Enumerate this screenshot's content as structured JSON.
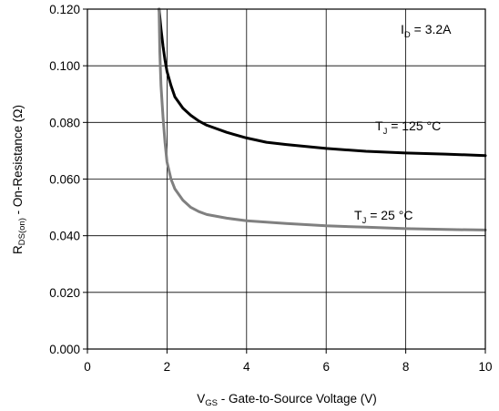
{
  "chart_data": {
    "type": "line",
    "xlim": [
      0,
      10
    ],
    "ylim": [
      0,
      0.12
    ],
    "x_ticks": [
      0,
      2,
      4,
      6,
      8,
      10
    ],
    "x_tick_labels": [
      "0",
      "2",
      "4",
      "6",
      "8",
      "10"
    ],
    "y_ticks": [
      0,
      0.02,
      0.04,
      0.06,
      0.08,
      0.1,
      0.12
    ],
    "y_tick_labels": [
      "0.000",
      "0.020",
      "0.040",
      "0.060",
      "0.080",
      "0.100",
      "0.120"
    ],
    "grid": true,
    "xlabel": {
      "main": "V",
      "sub": "GS",
      "rest": " - Gate-to-Source Voltage (V)"
    },
    "ylabel": {
      "main": "R",
      "sub": "DS(on)",
      "rest": " - On-Resistance (Ω)"
    },
    "annotation_id": {
      "main": "I",
      "sub": "D",
      "rest": " = 3.2A"
    },
    "series": [
      {
        "label": {
          "main": "T",
          "sub": "J",
          "rest": " = 125 °C"
        },
        "color": "#000000",
        "x": [
          1.8,
          1.85,
          1.9,
          1.95,
          2.0,
          2.1,
          2.2,
          2.4,
          2.6,
          2.8,
          3.0,
          3.5,
          4.0,
          4.5,
          5.0,
          6.0,
          7.0,
          8.0,
          9.0,
          10.0
        ],
        "y": [
          0.12,
          0.113,
          0.107,
          0.102,
          0.098,
          0.093,
          0.089,
          0.085,
          0.0825,
          0.0805,
          0.079,
          0.0765,
          0.0745,
          0.073,
          0.0722,
          0.0708,
          0.0698,
          0.0692,
          0.0688,
          0.0683
        ]
      },
      {
        "label": {
          "main": "T",
          "sub": "J",
          "rest": " = 25 °C"
        },
        "color": "#808080",
        "x": [
          1.8,
          1.82,
          1.85,
          1.9,
          1.95,
          2.0,
          2.1,
          2.2,
          2.4,
          2.6,
          2.8,
          3.0,
          3.5,
          4.0,
          5.0,
          6.0,
          7.0,
          8.0,
          9.0,
          10.0
        ],
        "y": [
          0.12,
          0.105,
          0.093,
          0.082,
          0.073,
          0.066,
          0.06,
          0.0565,
          0.0525,
          0.05,
          0.0485,
          0.0475,
          0.0462,
          0.0453,
          0.0443,
          0.0435,
          0.043,
          0.0425,
          0.0422,
          0.042
        ]
      }
    ]
  }
}
